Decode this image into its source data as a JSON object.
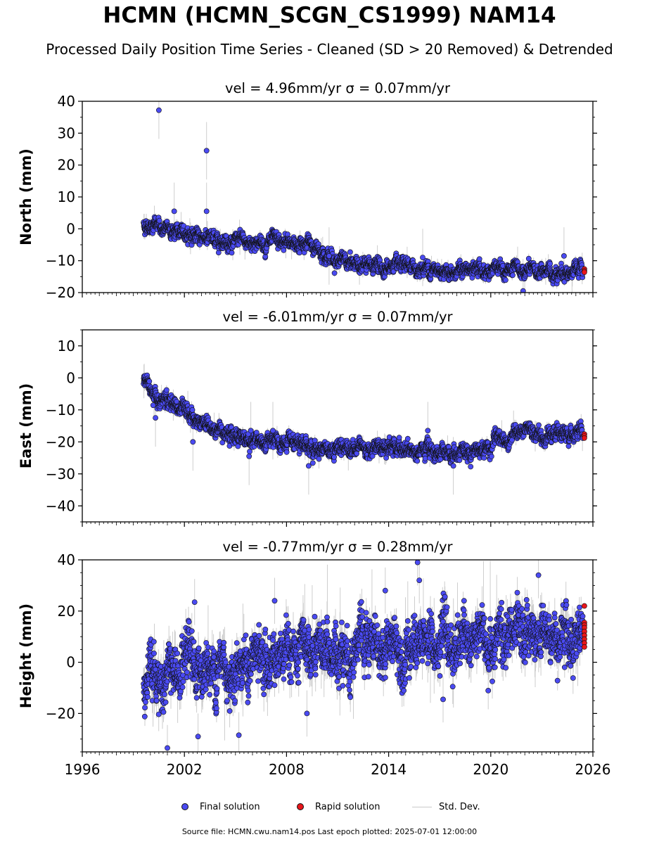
{
  "chart_data": {
    "type": "scatter",
    "title": "HCMN (HCMN_SCGN_CS1999) NAM14",
    "subtitle": "Processed Daily Position Time Series - Cleaned (SD > 20 Removed) & Detrended",
    "x_range": [
      1996,
      2026
    ],
    "x_ticks": [
      1996,
      2002,
      2008,
      2014,
      2020,
      2026
    ],
    "x_tick_labels": [
      "1996",
      "2002",
      "2008",
      "2014",
      "2020",
      "2026"
    ],
    "panels": [
      {
        "ylabel": "North (mm)",
        "annotation": "vel = 4.96mm/yr   σ = 0.07mm/yr",
        "ylim": [
          -20,
          40
        ],
        "yticks": [
          -20,
          -10,
          0,
          10,
          20,
          30,
          40
        ],
        "ytick_labels": [
          "−20",
          "−10",
          "0",
          "10",
          "20",
          "30",
          "40"
        ],
        "trend": [
          [
            1999.6,
            1.5
          ],
          [
            2000.5,
            0.5
          ],
          [
            2002.0,
            -1.5
          ],
          [
            2003.5,
            -3.0
          ],
          [
            2005.0,
            -4.0
          ],
          [
            2007.0,
            -4.5
          ],
          [
            2009.0,
            -4.5
          ],
          [
            2010.0,
            -6.5
          ],
          [
            2011.0,
            -10.0
          ],
          [
            2012.5,
            -11.5
          ],
          [
            2014.0,
            -12.0
          ],
          [
            2016.0,
            -12.5
          ],
          [
            2018.0,
            -13.0
          ],
          [
            2020.0,
            -13.0
          ],
          [
            2022.0,
            -13.5
          ],
          [
            2024.0,
            -13.5
          ],
          [
            2025.5,
            -13.5
          ]
        ],
        "noise": 1.2,
        "outliers": [
          [
            2000.5,
            37.2
          ],
          [
            2003.3,
            24.5
          ],
          [
            2003.3,
            5.5
          ],
          [
            2001.4,
            5.5
          ],
          [
            2010.5,
            -8.5
          ],
          [
            2021.9,
            -19.5
          ],
          [
            2024.3,
            -8.5
          ],
          [
            2016.0,
            -9.0
          ]
        ],
        "rapid": [
          [
            2025.5,
            -12.6
          ],
          [
            2025.5,
            -13.2
          ],
          [
            2025.5,
            -13.6
          ]
        ]
      },
      {
        "ylabel": "East (mm)",
        "annotation": "vel = -6.01mm/yr   σ = 0.07mm/yr",
        "ylim": [
          -45,
          15
        ],
        "yticks": [
          -40,
          -30,
          -20,
          -10,
          0,
          10
        ],
        "ytick_labels": [
          "−40",
          "−30",
          "−20",
          "−10",
          "0",
          "10"
        ],
        "trend": [
          [
            1999.6,
            0.0
          ],
          [
            2000.0,
            -4.0
          ],
          [
            2000.5,
            -6.0
          ],
          [
            2001.5,
            -9.0
          ],
          [
            2003.0,
            -14.0
          ],
          [
            2004.5,
            -17.0
          ],
          [
            2006.0,
            -19.5
          ],
          [
            2008.0,
            -21.0
          ],
          [
            2010.0,
            -22.0
          ],
          [
            2012.0,
            -21.5
          ],
          [
            2014.0,
            -22.0
          ],
          [
            2016.0,
            -23.0
          ],
          [
            2018.0,
            -23.0
          ],
          [
            2019.5,
            -22.5
          ],
          [
            2020.5,
            -19.5
          ],
          [
            2022.0,
            -17.5
          ],
          [
            2024.0,
            -17.5
          ],
          [
            2025.5,
            -18.0
          ]
        ],
        "noise": 1.3,
        "outliers": [
          [
            2000.3,
            -12.5
          ],
          [
            2002.5,
            -20.0
          ],
          [
            2005.8,
            -24.5
          ],
          [
            2009.3,
            -27.5
          ],
          [
            2016.3,
            -16.5
          ],
          [
            2017.8,
            -27.5
          ],
          [
            2005.9,
            -16.5
          ],
          [
            2007.2,
            -16.5
          ]
        ],
        "rapid": [
          [
            2025.5,
            -17.6
          ],
          [
            2025.5,
            -18.2
          ],
          [
            2025.5,
            -18.8
          ]
        ]
      },
      {
        "ylabel": "Height (mm)",
        "annotation": "vel = -0.77mm/yr   σ = 0.28mm/yr",
        "ylim": [
          -35,
          40
        ],
        "yticks": [
          -20,
          0,
          20,
          40
        ],
        "ytick_labels": [
          "−20",
          "0",
          "20",
          "40"
        ],
        "trend": [
          [
            1999.6,
            -6.0
          ],
          [
            2001.0,
            -5.0
          ],
          [
            2003.0,
            -3.0
          ],
          [
            2005.0,
            -1.0
          ],
          [
            2007.0,
            1.0
          ],
          [
            2009.0,
            2.0
          ],
          [
            2011.0,
            4.0
          ],
          [
            2013.0,
            6.0
          ],
          [
            2015.0,
            7.0
          ],
          [
            2017.0,
            7.0
          ],
          [
            2019.0,
            8.0
          ],
          [
            2021.0,
            10.0
          ],
          [
            2023.0,
            12.0
          ],
          [
            2025.5,
            11.0
          ]
        ],
        "noise": 5.5,
        "outliers": [
          [
            2002.6,
            23.5
          ],
          [
            2007.3,
            24.0
          ],
          [
            2002.8,
            -29.0
          ],
          [
            2001.0,
            -33.5
          ],
          [
            2005.2,
            -28.5
          ],
          [
            2015.7,
            39.0
          ],
          [
            2015.8,
            32.0
          ],
          [
            2022.8,
            34.0
          ],
          [
            2009.2,
            -20.0
          ],
          [
            2017.2,
            -14.5
          ],
          [
            2013.8,
            28.0
          ]
        ],
        "rapid": [
          [
            2025.5,
            22.0
          ],
          [
            2025.5,
            15.5
          ],
          [
            2025.5,
            14.5
          ],
          [
            2025.5,
            13.5
          ],
          [
            2025.5,
            12.0
          ],
          [
            2025.5,
            10.5
          ],
          [
            2025.5,
            9.0
          ],
          [
            2025.5,
            7.5
          ],
          [
            2025.5,
            6.0
          ]
        ]
      }
    ],
    "time_start": 1999.6,
    "time_end": 2025.4,
    "colors": {
      "final": "#4a4af2",
      "rapid": "#e8161b",
      "std": "#c9c9c9",
      "edge": "#111111"
    },
    "legend": [
      {
        "label": "Final solution",
        "kind": "final"
      },
      {
        "label": "Rapid solution",
        "kind": "rapid"
      },
      {
        "label": "Std. Dev.",
        "kind": "std"
      }
    ],
    "footer": "Source file: HCMN.cwu.nam14.pos  Last epoch plotted: 2025-07-01 12:00:00"
  }
}
